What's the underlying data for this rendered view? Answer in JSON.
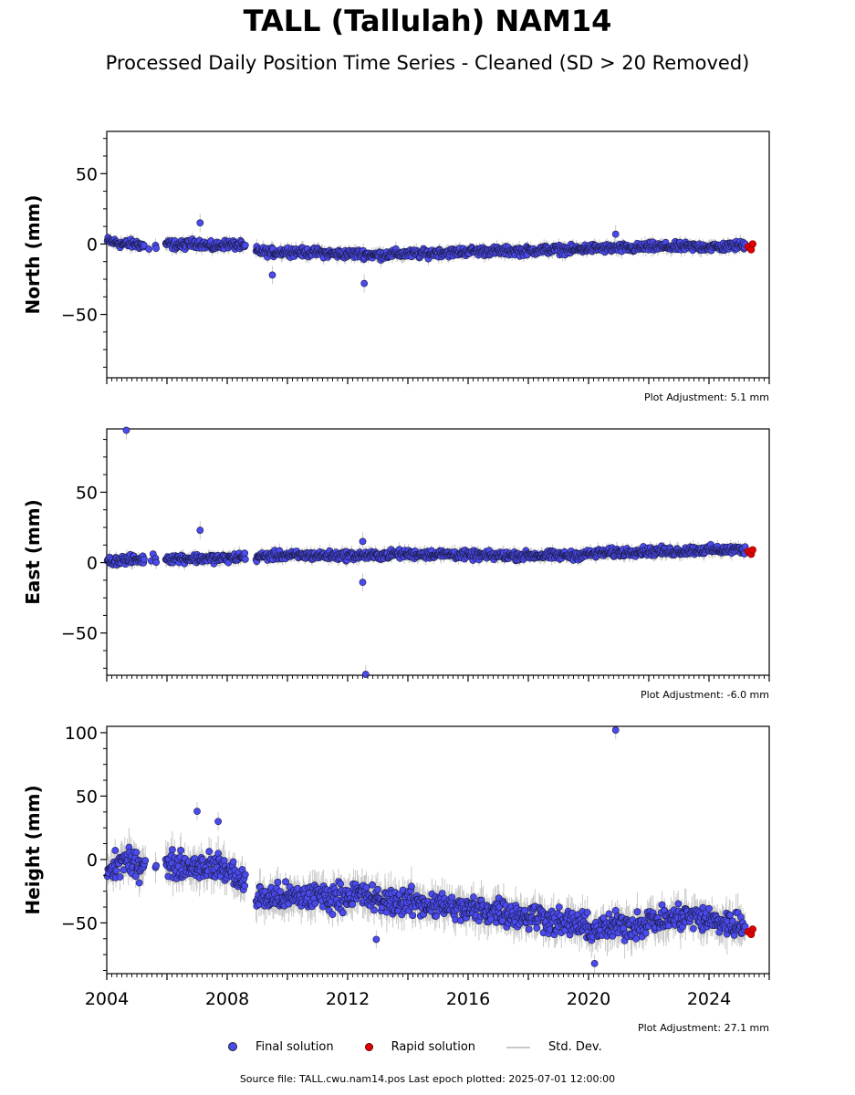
{
  "title": "TALL (Tallulah) NAM14",
  "subtitle": "Processed Daily Position Time Series - Cleaned (SD > 20 Removed)",
  "footer": "Source file: TALL.cwu.nam14.pos  Last epoch plotted: 2025-07-01 12:00:00",
  "legend": {
    "final": "Final solution",
    "rapid": "Rapid solution",
    "sd": "Std. Dev."
  },
  "colors": {
    "final": "#4a4aee",
    "rapid": "#e00000",
    "sd": "#c8c8c8"
  },
  "chart_data": [
    {
      "type": "scatter",
      "ylabel": "North (mm)",
      "adjustment": "Plot Adjustment: 5.1 mm",
      "xlim": [
        2004,
        2026
      ],
      "ylim": [
        -95,
        80
      ],
      "yticks": [
        50,
        0,
        -50
      ],
      "ytick_labels": [
        "50",
        "0",
        "−50"
      ],
      "series": [
        {
          "name": "Final solution",
          "x": [
            2004.1,
            2004.5,
            2005.0,
            2005.5,
            2006.0,
            2006.5,
            2007.0,
            2007.5,
            2008.0,
            2008.4,
            2009.0,
            2009.5,
            2010.0,
            2010.5,
            2011.0,
            2011.5,
            2012.0,
            2012.5,
            2013.0,
            2013.5,
            2014.0,
            2014.5,
            2015.0,
            2015.5,
            2016.0,
            2016.5,
            2017.0,
            2017.5,
            2018.0,
            2018.5,
            2019.0,
            2019.5,
            2020.0,
            2020.5,
            2021.0,
            2021.5,
            2022.0,
            2022.5,
            2023.0,
            2023.5,
            2024.0,
            2024.5,
            2025.0
          ],
          "y": [
            2,
            0,
            0,
            -3,
            0,
            -1,
            1,
            -2,
            0,
            -1,
            -5,
            -6,
            -5,
            -6,
            -6,
            -7,
            -7,
            -7,
            -8,
            -7,
            -7,
            -7,
            -6,
            -6,
            -5,
            -5,
            -5,
            -5,
            -5,
            -4,
            -4,
            -4,
            -3,
            -3,
            -3,
            -3,
            -2,
            -2,
            -2,
            -2,
            -2,
            -2,
            -1
          ]
        },
        {
          "name": "Rapid solution",
          "x": [
            2025.3,
            2025.4,
            2025.45
          ],
          "y": [
            -2,
            -4,
            0
          ]
        }
      ],
      "outliers": [
        {
          "x": 2007.1,
          "y": 15
        },
        {
          "x": 2009.5,
          "y": -22
        },
        {
          "x": 2012.55,
          "y": -28
        },
        {
          "x": 2020.9,
          "y": 7
        }
      ]
    },
    {
      "type": "scatter",
      "ylabel": "East (mm)",
      "adjustment": "Plot Adjustment: -6.0 mm",
      "xlim": [
        2004,
        2026
      ],
      "ylim": [
        -80,
        95
      ],
      "yticks": [
        50,
        0,
        -50
      ],
      "ytick_labels": [
        "50",
        "0",
        "−50"
      ],
      "series": [
        {
          "name": "Final solution",
          "x": [
            2004.1,
            2004.5,
            2005.0,
            2005.5,
            2006.0,
            2006.5,
            2007.0,
            2007.5,
            2008.0,
            2008.4,
            2009.0,
            2009.5,
            2010.0,
            2010.5,
            2011.0,
            2011.5,
            2012.0,
            2012.5,
            2013.0,
            2013.5,
            2014.0,
            2014.5,
            2015.0,
            2015.5,
            2016.0,
            2016.5,
            2017.0,
            2017.5,
            2018.0,
            2018.5,
            2019.0,
            2019.5,
            2020.0,
            2020.5,
            2021.0,
            2021.5,
            2022.0,
            2022.5,
            2023.0,
            2023.5,
            2024.0,
            2024.5,
            2025.0
          ],
          "y": [
            1,
            2,
            2,
            3,
            3,
            3,
            3,
            3,
            3,
            4,
            4,
            5,
            5,
            5,
            5,
            5,
            5,
            5,
            5,
            6,
            6,
            6,
            6,
            6,
            5,
            5,
            5,
            5,
            5,
            5,
            5,
            5,
            6,
            7,
            7,
            8,
            8,
            8,
            8,
            9,
            9,
            9,
            9
          ]
        },
        {
          "name": "Rapid solution",
          "x": [
            2025.3,
            2025.4,
            2025.45
          ],
          "y": [
            8,
            6,
            9
          ]
        }
      ],
      "outliers": [
        {
          "x": 2004.65,
          "y": 94
        },
        {
          "x": 2007.1,
          "y": 23
        },
        {
          "x": 2012.5,
          "y": 15
        },
        {
          "x": 2012.5,
          "y": -14
        },
        {
          "x": 2012.6,
          "y": -80
        }
      ]
    },
    {
      "type": "scatter",
      "ylabel": "Height (mm)",
      "adjustment": "Plot Adjustment: 27.1 mm",
      "xlim": [
        2004,
        2026
      ],
      "ylim": [
        -90,
        105
      ],
      "yticks": [
        100,
        50,
        0,
        -50
      ],
      "ytick_labels": [
        "100",
        "50",
        "0",
        "−50"
      ],
      "xticks": [
        2004,
        2008,
        2012,
        2016,
        2020,
        2024
      ],
      "xtick_labels": [
        "2004",
        "2008",
        "2012",
        "2016",
        "2020",
        "2024"
      ],
      "series": [
        {
          "name": "Final solution",
          "x": [
            2004.1,
            2004.5,
            2005.0,
            2005.5,
            2006.0,
            2006.5,
            2007.0,
            2007.5,
            2008.0,
            2008.4,
            2009.0,
            2009.5,
            2010.0,
            2010.5,
            2011.0,
            2011.5,
            2012.0,
            2012.5,
            2013.0,
            2013.5,
            2014.0,
            2014.5,
            2015.0,
            2015.5,
            2016.0,
            2016.5,
            2017.0,
            2017.5,
            2018.0,
            2018.5,
            2019.0,
            2019.5,
            2020.0,
            2020.5,
            2021.0,
            2021.5,
            2022.0,
            2022.5,
            2023.0,
            2023.5,
            2024.0,
            2024.5,
            2025.0
          ],
          "y": [
            -10,
            0,
            -5,
            -2,
            -5,
            -5,
            -5,
            -5,
            -8,
            -15,
            -30,
            -30,
            -30,
            -30,
            -28,
            -30,
            -28,
            -28,
            -33,
            -33,
            -33,
            -35,
            -35,
            -38,
            -40,
            -40,
            -40,
            -43,
            -45,
            -45,
            -50,
            -50,
            -55,
            -55,
            -52,
            -52,
            -48,
            -48,
            -45,
            -45,
            -48,
            -50,
            -52
          ]
        },
        {
          "name": "Rapid solution",
          "x": [
            2025.3,
            2025.4,
            2025.45
          ],
          "y": [
            -57,
            -59,
            -55
          ]
        }
      ],
      "outliers": [
        {
          "x": 2007.0,
          "y": 38
        },
        {
          "x": 2007.7,
          "y": 30
        },
        {
          "x": 2020.9,
          "y": 102
        },
        {
          "x": 2012.95,
          "y": -63
        },
        {
          "x": 2020.2,
          "y": -82
        }
      ]
    }
  ]
}
